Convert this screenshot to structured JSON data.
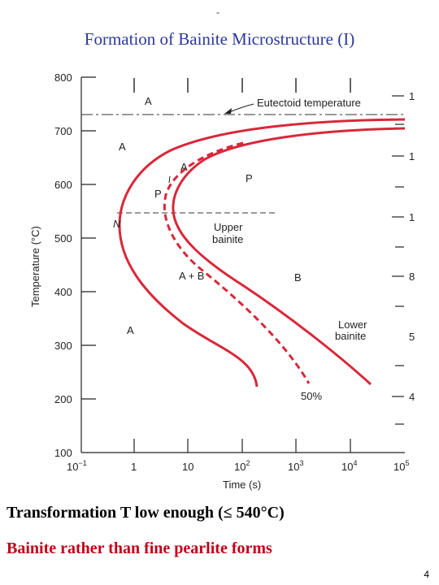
{
  "header": {
    "dash": "-"
  },
  "slide": {
    "title": "Formation of Bainite Microstructure (I)",
    "caption_line1": "Transformation T low enough (≤ 540°C)",
    "caption_line2": "Bainite rather than fine pearlite forms",
    "page_number": "4"
  },
  "diagram": {
    "y_axis_label": "Temperature (°C)",
    "x_axis_label": "Time (s)",
    "y_ticks": [
      "800",
      "700",
      "600",
      "500",
      "400",
      "300",
      "200",
      "100"
    ],
    "x_ticks": [
      {
        "base": "10",
        "exp": "−1"
      },
      {
        "base": "1",
        "exp": ""
      },
      {
        "base": "10",
        "exp": ""
      },
      {
        "base": "10",
        "exp": "2"
      },
      {
        "base": "10",
        "exp": "3"
      },
      {
        "base": "10",
        "exp": "4"
      },
      {
        "base": "10",
        "exp": "5"
      }
    ],
    "right_labels": [
      "1",
      "1",
      "1",
      "8",
      "5",
      "4"
    ],
    "eutectoid_label": "Eutectoid temperature",
    "region_labels": {
      "a_top": "A",
      "a_left": "A",
      "a_inner": "A",
      "p_left": "P",
      "p_right": "P",
      "n": "N",
      "upper_bainite_1": "Upper",
      "upper_bainite_2": "bainite",
      "a_plus_b": "A + B",
      "b": "B",
      "a_low": "A",
      "lower_bainite_1": "Lower",
      "lower_bainite_2": "bainite",
      "fifty_percent": "50%"
    },
    "curve_color": "#d9283a"
  }
}
